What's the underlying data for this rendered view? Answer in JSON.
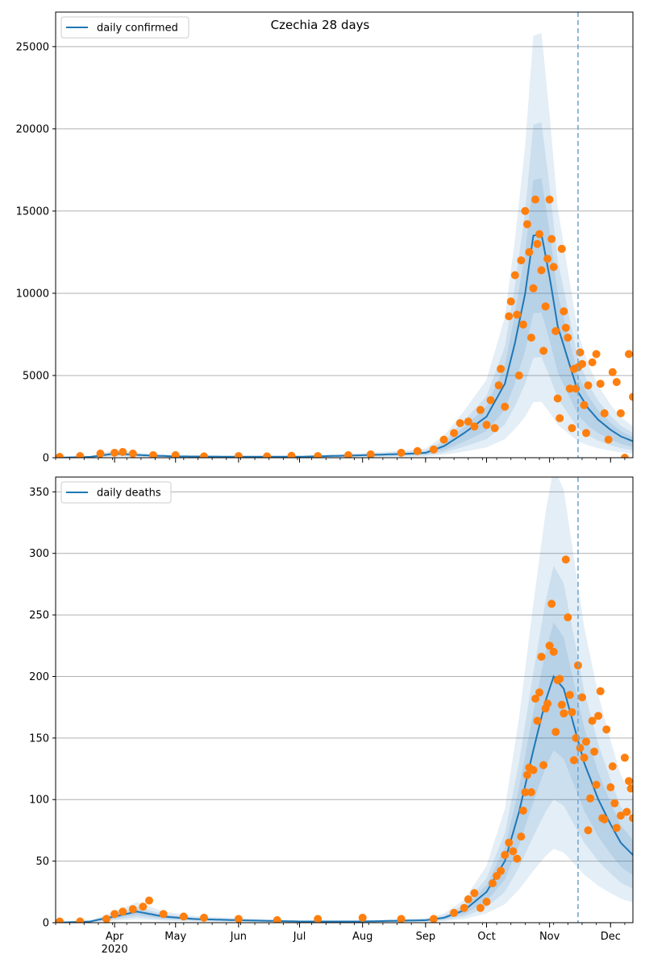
{
  "figure_title": "Czechia 28 days",
  "x_axis": {
    "month_labels": [
      "Apr",
      "May",
      "Jun",
      "Jul",
      "Aug",
      "Sep",
      "Oct",
      "Nov",
      "Dec"
    ],
    "year_label": "2020"
  },
  "colors": {
    "line": "#1f77b4",
    "observed": "#ff7f0e",
    "band": "#1f77b4",
    "vline": "#6fa8d6",
    "grid": "#b0b0b0"
  },
  "chart_data": [
    {
      "type": "line",
      "legend": "daily confirmed",
      "legend_position": "top-left",
      "ylim": [
        0,
        27100
      ],
      "yticks": [
        0,
        5000,
        10000,
        15000,
        20000,
        25000
      ],
      "grid": "horizontal",
      "xlim": [
        "2020-03-03",
        "2020-12-12"
      ],
      "forecast_start": "2020-11-15",
      "fit": {
        "x": [
          "2020-03-03",
          "2020-03-20",
          "2020-04-01",
          "2020-04-15",
          "2020-05-01",
          "2020-06-01",
          "2020-07-01",
          "2020-08-01",
          "2020-08-25",
          "2020-09-01",
          "2020-09-10",
          "2020-09-20",
          "2020-10-01",
          "2020-10-10",
          "2020-10-15",
          "2020-10-20",
          "2020-10-24",
          "2020-10-28",
          "2020-11-01",
          "2020-11-05",
          "2020-11-10",
          "2020-11-15",
          "2020-11-20",
          "2020-11-25",
          "2020-12-01",
          "2020-12-06",
          "2020-12-12"
        ],
        "y": [
          0,
          50,
          250,
          150,
          80,
          60,
          60,
          150,
          250,
          300,
          700,
          1500,
          2500,
          4500,
          7000,
          10000,
          13500,
          13600,
          11000,
          8000,
          6000,
          4000,
          3000,
          2300,
          1700,
          1300,
          1000
        ]
      },
      "band_scale": [
        {
          "lo": 0.25,
          "hi": 1.9
        },
        {
          "lo": 0.45,
          "hi": 1.5
        },
        {
          "lo": 0.65,
          "hi": 1.25
        }
      ],
      "observed": {
        "x": [
          "2020-03-05",
          "2020-03-15",
          "2020-03-25",
          "2020-04-01",
          "2020-04-05",
          "2020-04-10",
          "2020-04-20",
          "2020-05-01",
          "2020-05-15",
          "2020-06-01",
          "2020-06-15",
          "2020-06-27",
          "2020-07-10",
          "2020-07-25",
          "2020-08-05",
          "2020-08-20",
          "2020-08-28",
          "2020-09-05",
          "2020-09-10",
          "2020-09-15",
          "2020-09-18",
          "2020-09-22",
          "2020-09-25",
          "2020-09-28",
          "2020-10-01",
          "2020-10-03",
          "2020-10-05",
          "2020-10-07",
          "2020-10-08",
          "2020-10-10",
          "2020-10-12",
          "2020-10-13",
          "2020-10-15",
          "2020-10-16",
          "2020-10-17",
          "2020-10-18",
          "2020-10-19",
          "2020-10-20",
          "2020-10-21",
          "2020-10-22",
          "2020-10-23",
          "2020-10-24",
          "2020-10-25",
          "2020-10-26",
          "2020-10-27",
          "2020-10-28",
          "2020-10-29",
          "2020-10-30",
          "2020-10-31",
          "2020-11-01",
          "2020-11-02",
          "2020-11-03",
          "2020-11-04",
          "2020-11-05",
          "2020-11-06",
          "2020-11-07",
          "2020-11-08",
          "2020-11-09",
          "2020-11-10",
          "2020-11-11",
          "2020-11-12",
          "2020-11-13",
          "2020-11-14",
          "2020-11-15",
          "2020-11-16",
          "2020-11-17",
          "2020-11-18",
          "2020-11-19",
          "2020-11-20",
          "2020-11-22",
          "2020-11-24",
          "2020-11-26",
          "2020-11-28",
          "2020-11-30",
          "2020-12-02",
          "2020-12-04",
          "2020-12-06",
          "2020-12-08",
          "2020-12-10",
          "2020-12-12"
        ],
        "y": [
          50,
          100,
          250,
          300,
          350,
          250,
          150,
          150,
          80,
          100,
          80,
          120,
          100,
          150,
          200,
          300,
          400,
          500,
          1100,
          1500,
          2100,
          2200,
          1900,
          2900,
          2000,
          3500,
          1800,
          4400,
          5400,
          3100,
          8600,
          9500,
          11100,
          8700,
          5000,
          12000,
          8100,
          15000,
          14200,
          12500,
          7300,
          10300,
          15700,
          13000,
          13600,
          11400,
          6500,
          9200,
          12100,
          15700,
          13300,
          11600,
          7700,
          3600,
          2400,
          12700,
          8900,
          7900,
          7300,
          4200,
          1800,
          5400,
          4200,
          5500,
          6400,
          5700,
          3200,
          1500,
          4400,
          5800,
          6300,
          4500,
          2700,
          1100,
          5200,
          4600,
          2700,
          0,
          6300,
          3700
        ]
      }
    },
    {
      "type": "line",
      "legend": "daily deaths",
      "legend_position": "top-left",
      "ylim": [
        0,
        362
      ],
      "yticks": [
        0,
        50,
        100,
        150,
        200,
        250,
        300,
        350
      ],
      "grid": "horizontal",
      "xlim": [
        "2020-03-03",
        "2020-12-12"
      ],
      "forecast_start": "2020-11-15",
      "fit": {
        "x": [
          "2020-03-03",
          "2020-03-20",
          "2020-04-01",
          "2020-04-12",
          "2020-04-25",
          "2020-05-10",
          "2020-06-01",
          "2020-07-01",
          "2020-08-01",
          "2020-09-01",
          "2020-09-10",
          "2020-09-20",
          "2020-10-01",
          "2020-10-10",
          "2020-10-17",
          "2020-10-24",
          "2020-10-30",
          "2020-11-03",
          "2020-11-08",
          "2020-11-13",
          "2020-11-18",
          "2020-11-25",
          "2020-12-01",
          "2020-12-06",
          "2020-12-12"
        ],
        "y": [
          0,
          1,
          5,
          9,
          5,
          3,
          2,
          1,
          1,
          2,
          4,
          10,
          25,
          50,
          90,
          140,
          180,
          200,
          190,
          160,
          130,
          100,
          80,
          65,
          55
        ]
      },
      "band_scale": [
        {
          "lo": 0.3,
          "hi": 1.85
        },
        {
          "lo": 0.5,
          "hi": 1.45
        },
        {
          "lo": 0.7,
          "hi": 1.22
        }
      ],
      "observed": {
        "x": [
          "2020-03-05",
          "2020-03-15",
          "2020-03-28",
          "2020-04-01",
          "2020-04-05",
          "2020-04-10",
          "2020-04-15",
          "2020-04-18",
          "2020-04-25",
          "2020-05-05",
          "2020-05-15",
          "2020-06-01",
          "2020-06-20",
          "2020-07-10",
          "2020-08-01",
          "2020-08-20",
          "2020-09-05",
          "2020-09-15",
          "2020-09-20",
          "2020-09-22",
          "2020-09-25",
          "2020-09-28",
          "2020-10-01",
          "2020-10-04",
          "2020-10-06",
          "2020-10-08",
          "2020-10-10",
          "2020-10-12",
          "2020-10-14",
          "2020-10-16",
          "2020-10-18",
          "2020-10-19",
          "2020-10-20",
          "2020-10-21",
          "2020-10-22",
          "2020-10-23",
          "2020-10-24",
          "2020-10-25",
          "2020-10-26",
          "2020-10-27",
          "2020-10-28",
          "2020-10-29",
          "2020-10-30",
          "2020-10-31",
          "2020-11-01",
          "2020-11-02",
          "2020-11-03",
          "2020-11-04",
          "2020-11-05",
          "2020-11-06",
          "2020-11-07",
          "2020-11-08",
          "2020-11-09",
          "2020-11-10",
          "2020-11-11",
          "2020-11-12",
          "2020-11-13",
          "2020-11-14",
          "2020-11-15",
          "2020-11-16",
          "2020-11-17",
          "2020-11-18",
          "2020-11-19",
          "2020-11-20",
          "2020-11-21",
          "2020-11-22",
          "2020-11-23",
          "2020-11-24",
          "2020-11-25",
          "2020-11-26",
          "2020-11-27",
          "2020-11-28",
          "2020-11-29",
          "2020-12-01",
          "2020-12-02",
          "2020-12-03",
          "2020-12-04",
          "2020-12-06",
          "2020-12-08",
          "2020-12-09",
          "2020-12-10",
          "2020-12-11",
          "2020-12-12"
        ],
        "y": [
          1,
          1,
          3,
          7,
          9,
          11,
          13,
          18,
          7,
          5,
          4,
          3,
          2,
          3,
          4,
          3,
          3,
          8,
          12,
          19,
          24,
          12,
          17,
          32,
          38,
          42,
          55,
          65,
          58,
          52,
          70,
          91,
          106,
          120,
          126,
          106,
          124,
          182,
          164,
          187,
          216,
          128,
          174,
          178,
          225,
          259,
          220,
          155,
          197,
          198,
          177,
          170,
          295,
          248,
          185,
          171,
          132,
          150,
          209,
          142,
          183,
          134,
          147,
          75,
          101,
          164,
          139,
          112,
          168,
          188,
          85,
          84,
          157,
          110,
          127,
          97,
          77,
          87,
          134,
          90,
          115,
          109,
          85
        ]
      }
    }
  ]
}
